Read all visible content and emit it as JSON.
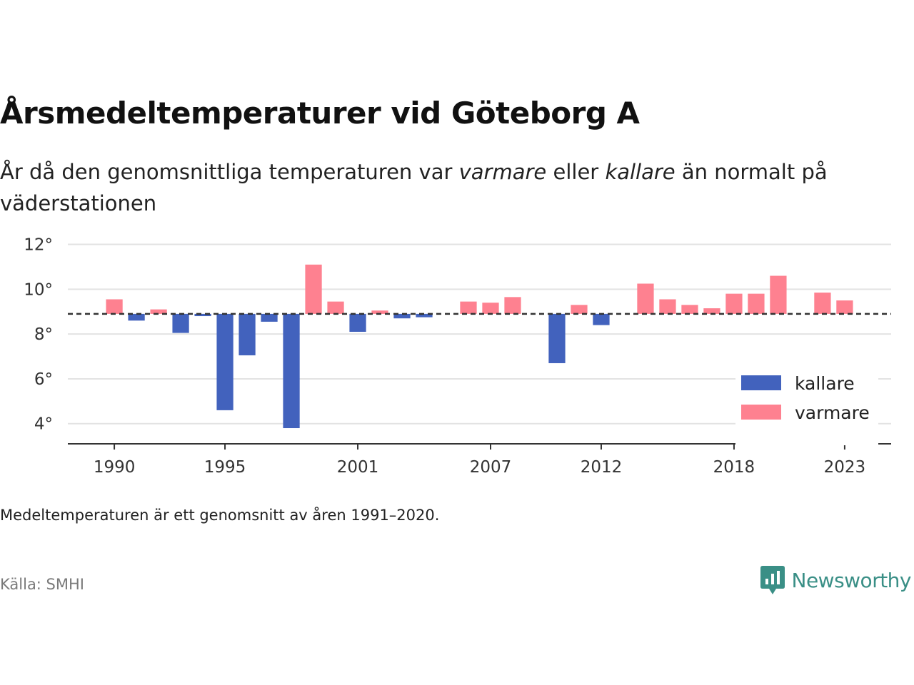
{
  "header": {
    "title": "Årsmedeltemperaturer vid Göteborg A",
    "subtitle_part1": "År då den genomsnittliga temperaturen var ",
    "subtitle_warm": "varmare",
    "subtitle_part2": " eller ",
    "subtitle_cold": "kallare",
    "subtitle_part3": " än normalt på väderstationen"
  },
  "footer": {
    "note": "Medeltemperaturen är ett genomsnitt av åren 1991–2020.",
    "source": "Källa: SMHI",
    "brand": "Newsworthy"
  },
  "colors": {
    "kallare": "#4262bd",
    "varmare": "#fe8190",
    "grid": "#e3e3e3",
    "axis": "#333333",
    "baseline": "#333333",
    "brand": "#3a8f86"
  },
  "chart_data": {
    "type": "bar",
    "baseline": 8.9,
    "baseline_style": "dashed",
    "ylim": [
      3.1,
      12.4
    ],
    "yticks": [
      4,
      6,
      8,
      10,
      12
    ],
    "ytick_labels": [
      "4°",
      "6°",
      "8°",
      "10°",
      "12°"
    ],
    "xlim": [
      1987.9,
      2025.1
    ],
    "xticks": [
      1990,
      1995,
      2001,
      2007,
      2012,
      2018,
      2023
    ],
    "xtick_labels": [
      "1990",
      "1995",
      "2001",
      "2007",
      "2012",
      "2018",
      "2023"
    ],
    "grid": "horizontal",
    "legend_position": "bottom-right",
    "series": [
      {
        "name": "kallare",
        "color_key": "kallare"
      },
      {
        "name": "varmare",
        "color_key": "varmare"
      }
    ],
    "bars": [
      {
        "year": 1990,
        "value": 9.55
      },
      {
        "year": 1991,
        "value": 8.6
      },
      {
        "year": 1992,
        "value": 9.1
      },
      {
        "year": 1993,
        "value": 8.05
      },
      {
        "year": 1994,
        "value": 8.8
      },
      {
        "year": 1995,
        "value": 4.6
      },
      {
        "year": 1996,
        "value": 7.05
      },
      {
        "year": 1997,
        "value": 8.55
      },
      {
        "year": 1998,
        "value": 3.8
      },
      {
        "year": 1999,
        "value": 11.1
      },
      {
        "year": 2000,
        "value": 9.45
      },
      {
        "year": 2001,
        "value": 8.1
      },
      {
        "year": 2002,
        "value": 9.05
      },
      {
        "year": 2003,
        "value": 8.7
      },
      {
        "year": 2004,
        "value": 8.75
      },
      {
        "year": 2005,
        "value": 8.9
      },
      {
        "year": 2006,
        "value": 9.45
      },
      {
        "year": 2007,
        "value": 9.4
      },
      {
        "year": 2008,
        "value": 9.65
      },
      {
        "year": 2009,
        "value": 8.9
      },
      {
        "year": 2010,
        "value": 6.7
      },
      {
        "year": 2011,
        "value": 9.3
      },
      {
        "year": 2012,
        "value": 8.4
      },
      {
        "year": 2013,
        "value": 8.9
      },
      {
        "year": 2014,
        "value": 10.25
      },
      {
        "year": 2015,
        "value": 9.55
      },
      {
        "year": 2016,
        "value": 9.3
      },
      {
        "year": 2017,
        "value": 9.15
      },
      {
        "year": 2018,
        "value": 9.8
      },
      {
        "year": 2019,
        "value": 9.8
      },
      {
        "year": 2020,
        "value": 10.6
      },
      {
        "year": 2021,
        "value": 8.9
      },
      {
        "year": 2022,
        "value": 9.85
      },
      {
        "year": 2023,
        "value": 9.5
      }
    ]
  }
}
